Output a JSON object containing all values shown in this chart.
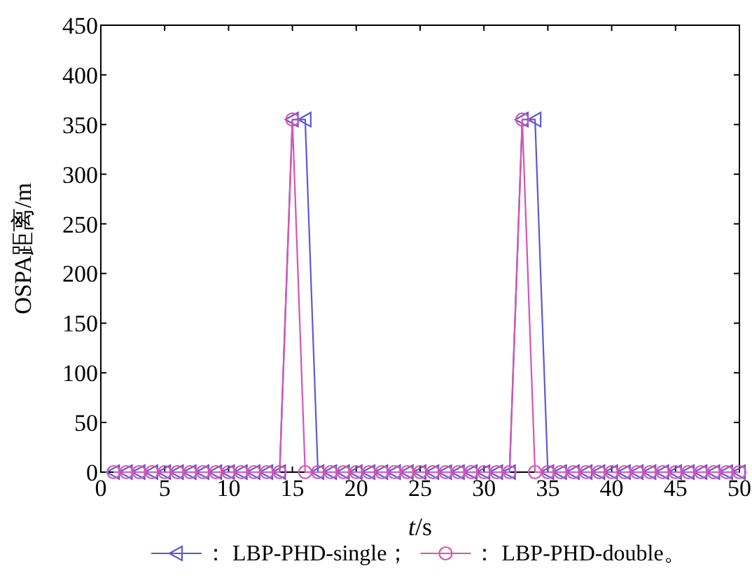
{
  "chart_data": {
    "type": "line",
    "xlabel": "*t*/s",
    "ylabel": "OSPA距离/m",
    "xlim": [
      0,
      50
    ],
    "ylim": [
      0,
      450
    ],
    "xticks": [
      0,
      5,
      10,
      15,
      20,
      25,
      30,
      35,
      40,
      45,
      50
    ],
    "yticks": [
      0,
      50,
      100,
      150,
      200,
      250,
      300,
      350,
      400,
      450
    ],
    "x": [
      1,
      2,
      3,
      4,
      5,
      6,
      7,
      8,
      9,
      10,
      11,
      12,
      13,
      14,
      15,
      16,
      17,
      18,
      19,
      20,
      21,
      22,
      23,
      24,
      25,
      26,
      27,
      28,
      29,
      30,
      31,
      32,
      33,
      34,
      35,
      36,
      37,
      38,
      39,
      40,
      41,
      42,
      43,
      44,
      45,
      46,
      47,
      48,
      49,
      50
    ],
    "legend": "bottom",
    "grid": false,
    "series": [
      {
        "name": "： LBP-PHD-single；",
        "color": "#5a5ad2",
        "marker": "triangle",
        "values": [
          0,
          0,
          0,
          0,
          0,
          0,
          0,
          0,
          0,
          0,
          0,
          0,
          0,
          0,
          355,
          355,
          0,
          0,
          0,
          0,
          0,
          0,
          0,
          0,
          0,
          0,
          0,
          0,
          0,
          0,
          0,
          0,
          355,
          355,
          0,
          0,
          0,
          0,
          0,
          0,
          0,
          0,
          0,
          0,
          0,
          0,
          0,
          0,
          0,
          0
        ]
      },
      {
        "name": "： LBP-PHD-double。",
        "color": "#d455b4",
        "marker": "circle",
        "values": [
          0,
          0,
          0,
          0,
          0,
          0,
          0,
          0,
          0,
          0,
          0,
          0,
          0,
          0,
          355,
          0,
          0,
          0,
          0,
          0,
          0,
          0,
          0,
          0,
          0,
          0,
          0,
          0,
          0,
          0,
          0,
          0,
          355,
          0,
          0,
          0,
          0,
          0,
          0,
          0,
          0,
          0,
          0,
          0,
          0,
          0,
          0,
          0,
          0,
          0
        ]
      }
    ]
  }
}
